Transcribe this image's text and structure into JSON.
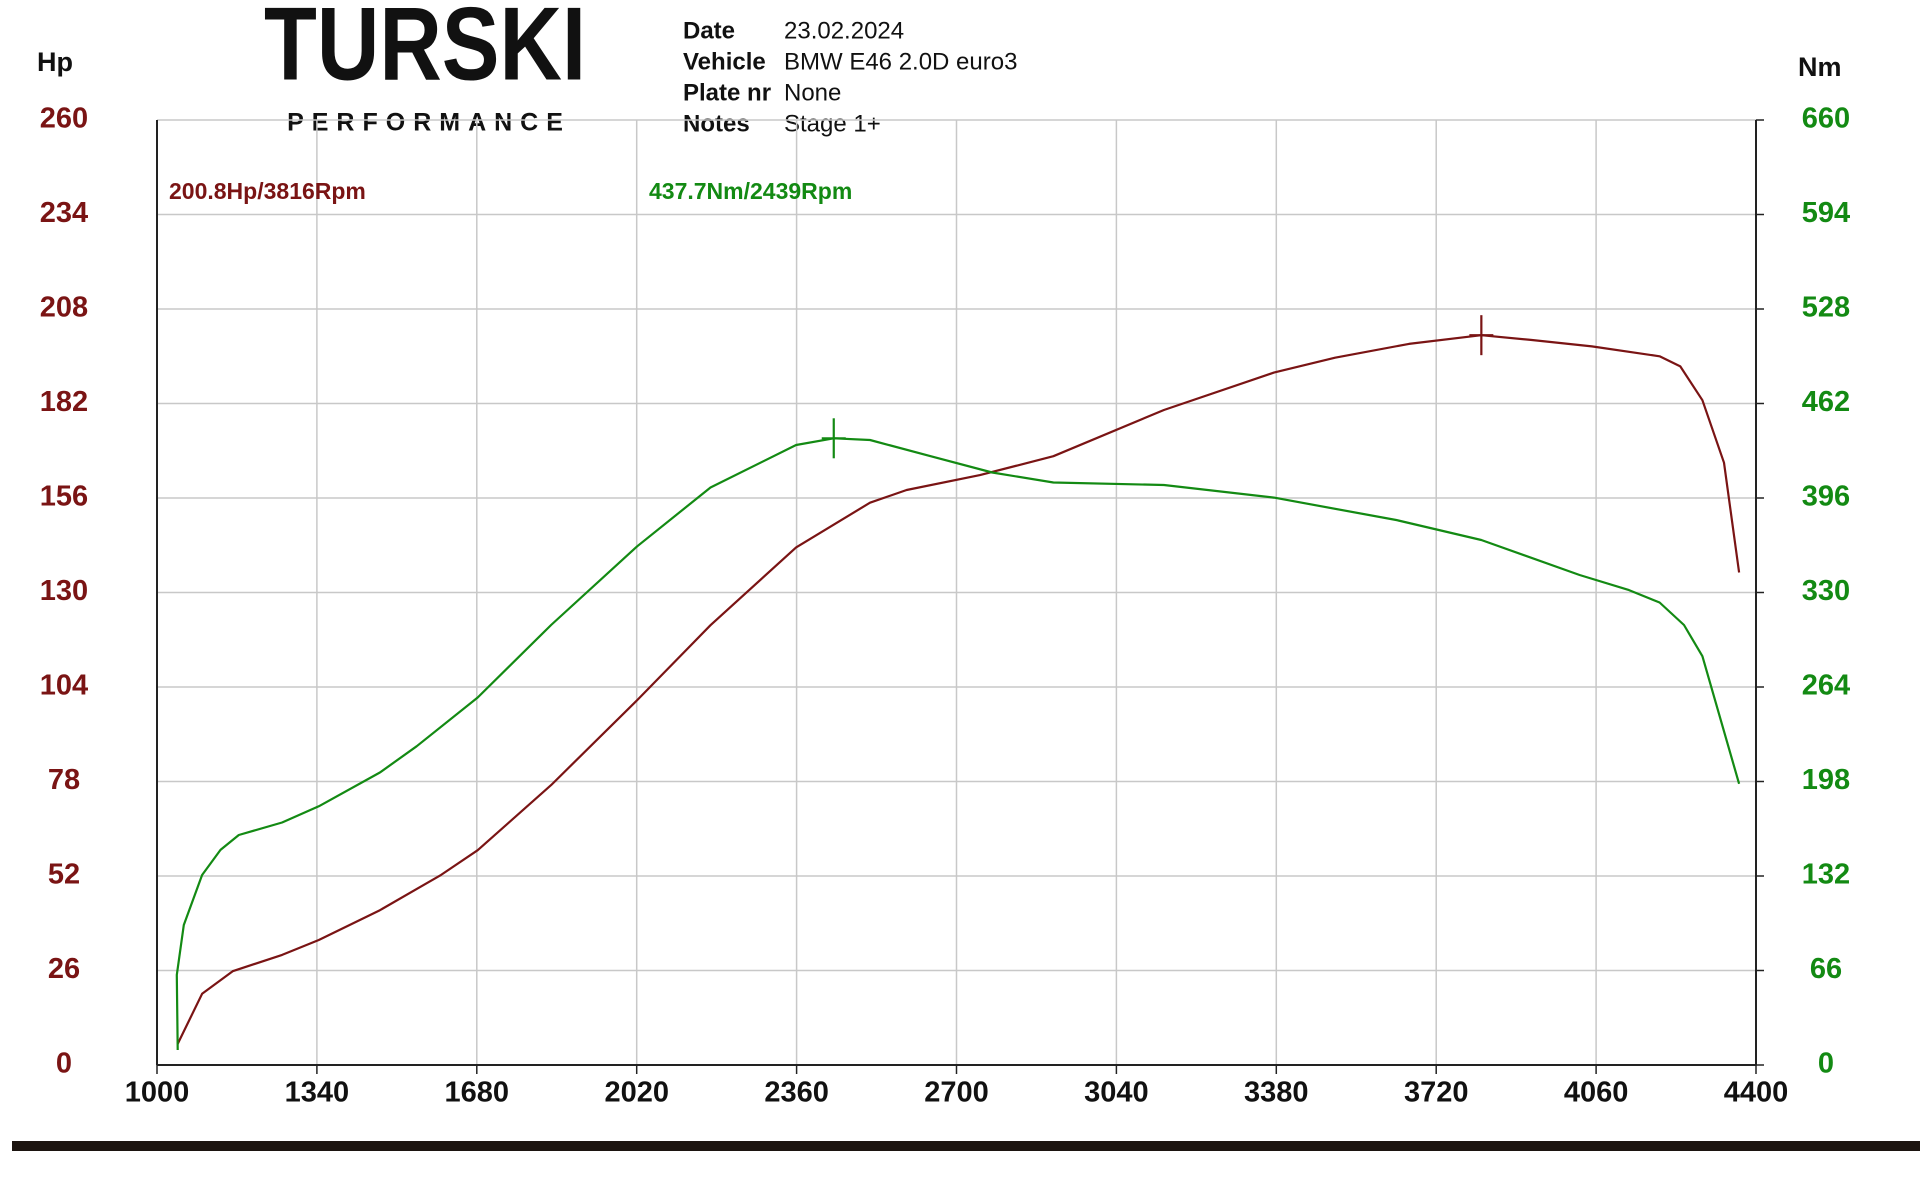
{
  "header": {
    "logo": "TURSKI",
    "logo_sub": "PERFORMANCE",
    "fields": [
      {
        "label": "Date",
        "value": "23.02.2024"
      },
      {
        "label": "Vehicle",
        "value": "BMW E46 2.0D euro3"
      },
      {
        "label": "Plate nr",
        "value": "None"
      },
      {
        "label": "Notes",
        "value": "Stage 1+"
      }
    ]
  },
  "chart_data": {
    "type": "line",
    "y_label": "Hp",
    "y2_label": "Nm",
    "annotations": [
      "200.8Hp/3816Rpm",
      "437.7Nm/2439Rpm"
    ],
    "xlim": [
      1000,
      4400
    ],
    "xticks": [
      1000,
      1340,
      1680,
      2020,
      2360,
      2700,
      3040,
      3380,
      3720,
      4060,
      4400
    ],
    "ylim": [
      0,
      260
    ],
    "yticks": [
      0,
      26,
      52,
      78,
      104,
      130,
      156,
      182,
      208,
      234,
      260
    ],
    "y2lim": [
      0,
      660
    ],
    "y2ticks": [
      0,
      66,
      132,
      198,
      264,
      330,
      396,
      462,
      528,
      594,
      660
    ],
    "grid": true,
    "series": [
      {
        "name": "Hp",
        "color": "#7a1414",
        "x": [
          1044,
          1096,
          1161,
          1266,
          1344,
          1474,
          1604,
          1682,
          1838,
          2021,
          2177,
          2359,
          2516,
          2594,
          2750,
          2906,
          3141,
          3375,
          3505,
          3662,
          3816,
          3921,
          4051,
          4195,
          4239,
          4286,
          4332,
          4364
        ],
        "values": [
          5.8,
          19.6,
          25.8,
          30.3,
          34.4,
          42.6,
          52.3,
          59.1,
          77.0,
          100.4,
          121.0,
          142.4,
          154.7,
          158.2,
          162.3,
          167.5,
          180.2,
          190.5,
          194.6,
          198.4,
          200.8,
          199.5,
          197.7,
          195.0,
          192.2,
          182.9,
          165.7,
          135.5
        ]
      },
      {
        "name": "Nm",
        "color": "#138a13",
        "axis": "y2",
        "x": [
          1044,
          1042,
          1057,
          1096,
          1135,
          1174,
          1266,
          1344,
          1474,
          1552,
          1682,
          1838,
          2021,
          2177,
          2359,
          2439,
          2516,
          2646,
          2776,
          2906,
          3141,
          3375,
          3635,
          3816,
          4025,
          4130,
          4195,
          4247,
          4286,
          4364
        ],
        "values": [
          10.5,
          62.9,
          97.8,
          132.7,
          150.2,
          160.6,
          169.4,
          180.7,
          204.3,
          222.6,
          256.7,
          307.3,
          362.3,
          403.3,
          433.0,
          437.7,
          436.5,
          425.1,
          413.8,
          406.8,
          405.1,
          396.3,
          380.6,
          366.7,
          342.2,
          331.7,
          323.0,
          307.3,
          285.5,
          196.4
        ]
      }
    ]
  }
}
